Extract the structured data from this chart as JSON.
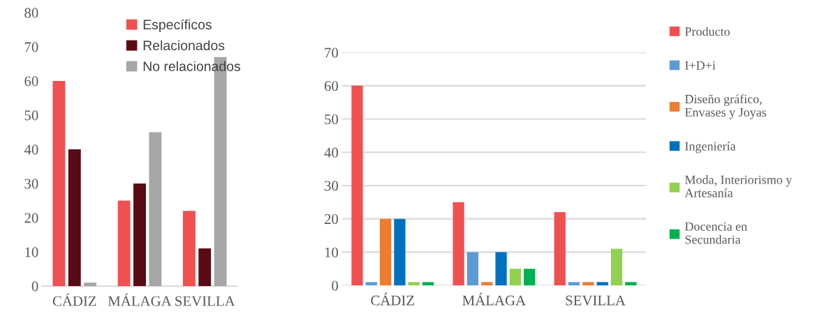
{
  "chart_data": [
    {
      "type": "bar",
      "categories": [
        "CÁDIZ",
        "MÁLAGA",
        "SEVILLA"
      ],
      "ylim": [
        0,
        80
      ],
      "yticks": [
        0,
        10,
        20,
        30,
        40,
        50,
        60,
        70,
        80
      ],
      "grid": false,
      "legend": "top right",
      "series": [
        {
          "name": "Específicos",
          "color": "#f05050",
          "values": [
            60,
            25,
            22
          ]
        },
        {
          "name": "Relacionados",
          "color": "#5a0a14",
          "values": [
            40,
            30,
            11
          ]
        },
        {
          "name": "No relacionados",
          "color": "#a6a6a6",
          "values": [
            1,
            45,
            67
          ]
        }
      ]
    },
    {
      "type": "bar",
      "categories": [
        "CÁDIZ",
        "MÁLAGA",
        "SEVILLA"
      ],
      "ylim": [
        0,
        70
      ],
      "yticks": [
        0,
        10,
        20,
        30,
        40,
        50,
        60,
        70
      ],
      "grid": "y",
      "legend": "right",
      "series": [
        {
          "name": "Producto",
          "color": "#f05050",
          "values": [
            60,
            25,
            22
          ]
        },
        {
          "name": "I+D+i",
          "color": "#5b9bd5",
          "values": [
            1,
            10,
            1
          ]
        },
        {
          "name": "Diseño gráfico,\nEnvases y Joyas",
          "color": "#ed7d31",
          "values": [
            20,
            1,
            1
          ]
        },
        {
          "name": "Ingeniería",
          "color": "#0070c0",
          "values": [
            20,
            10,
            1
          ]
        },
        {
          "name": "Moda, Interiorismo y\nArtesanía",
          "color": "#92d050",
          "values": [
            1,
            5,
            11
          ]
        },
        {
          "name": "Docencia en\nSecundaria",
          "color": "#00b050",
          "values": [
            1,
            5,
            1
          ]
        }
      ]
    }
  ]
}
